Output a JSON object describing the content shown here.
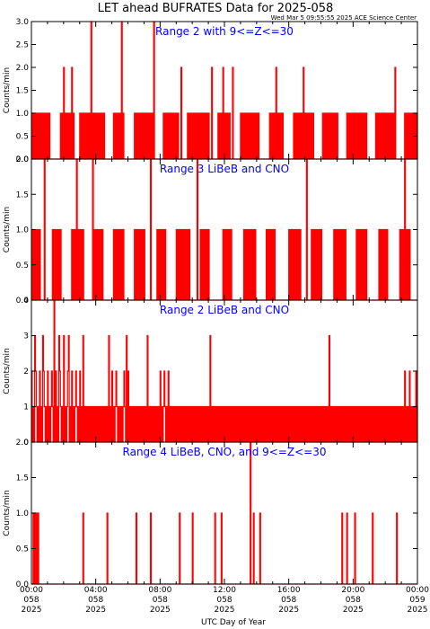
{
  "page": {
    "title": "LET ahead BUFRATES Data for 2025-058",
    "timestamp": "Wed Mar  5 09:55:55 2025 ACE Science Center",
    "xlabel": "UTC Day of Year"
  },
  "colors": {
    "data": "#ff0000",
    "panel_title": "#0000ff",
    "axes": "#000000"
  },
  "chart_data": [
    {
      "type": "line",
      "title": "Range 2 with 9<=Z<=30",
      "ylabel": "Counts/min",
      "ylim": [
        0,
        3
      ],
      "yticks": [
        "0.0",
        "0.5",
        "1.0",
        "1.5",
        "2.0",
        "2.5",
        "3.0"
      ],
      "xlim": [
        0,
        24
      ],
      "step_hours": 0.05,
      "one_count_intervals": [
        [
          0,
          1.2
        ],
        [
          1.8,
          2.6
        ],
        [
          3.0,
          4.5
        ],
        [
          5.1,
          5.8
        ],
        [
          6.4,
          7.6
        ],
        [
          8.2,
          9.1
        ],
        [
          9.7,
          11.0
        ],
        [
          11.6,
          12.3
        ],
        [
          13.0,
          14.2
        ],
        [
          14.8,
          15.7
        ],
        [
          16.3,
          17.5
        ],
        [
          18.1,
          19.0
        ],
        [
          19.6,
          20.8
        ],
        [
          21.4,
          22.6
        ],
        [
          23.2,
          24
        ]
      ],
      "peaks": [
        [
          2.0,
          2
        ],
        [
          2.5,
          2
        ],
        [
          3.7,
          3
        ],
        [
          5.6,
          3
        ],
        [
          7.6,
          3
        ],
        [
          9.3,
          2
        ],
        [
          11.2,
          2
        ],
        [
          11.9,
          2
        ],
        [
          12.5,
          2
        ],
        [
          15.2,
          2
        ],
        [
          16.9,
          2
        ],
        [
          22.6,
          2
        ]
      ]
    },
    {
      "type": "line",
      "title": "Range 3 LiBeB and CNO",
      "ylabel": "Counts/min",
      "ylim": [
        0,
        2
      ],
      "yticks": [
        "0.0",
        "0.5",
        "1.0",
        "1.5",
        "2.0"
      ],
      "xlim": [
        0,
        24
      ],
      "step_hours": 0.05,
      "one_count_intervals": [
        [
          0,
          0.6
        ],
        [
          1.3,
          1.9
        ],
        [
          2.5,
          3.2
        ],
        [
          3.9,
          4.4
        ],
        [
          5.1,
          5.7
        ],
        [
          6.4,
          7.1
        ],
        [
          7.8,
          8.3
        ],
        [
          9.0,
          9.8
        ],
        [
          10.5,
          11.1
        ],
        [
          11.9,
          12.4
        ],
        [
          13.2,
          13.9
        ],
        [
          14.6,
          15.2
        ],
        [
          16.0,
          16.7
        ],
        [
          17.4,
          18.0
        ],
        [
          18.8,
          19.5
        ],
        [
          20.2,
          20.9
        ],
        [
          21.6,
          22.2
        ],
        [
          22.9,
          23.5
        ]
      ],
      "peaks": [
        [
          0.8,
          2
        ],
        [
          2.8,
          2
        ],
        [
          3.8,
          2
        ],
        [
          7.4,
          2
        ],
        [
          10.3,
          2
        ],
        [
          17.1,
          2
        ],
        [
          23.2,
          2
        ]
      ]
    },
    {
      "type": "line",
      "title": "Range 2 LiBeB and CNO",
      "ylabel": "Counts/min",
      "ylim": [
        0,
        4
      ],
      "yticks": [
        "0",
        "1",
        "2",
        "3",
        "4"
      ],
      "xlim": [
        0,
        24
      ],
      "step_hours": 0.05,
      "one_count_intervals": [
        [
          0,
          24
        ]
      ],
      "two_count_intervals": [
        [
          0,
          3.2
        ],
        [
          4.9,
          5.3
        ],
        [
          5.6,
          6.1
        ],
        [
          7.8,
          8.5
        ]
      ],
      "peaks": [
        [
          0.2,
          3
        ],
        [
          0.7,
          3
        ],
        [
          1.4,
          4
        ],
        [
          1.7,
          3
        ],
        [
          2.0,
          3
        ],
        [
          2.3,
          3
        ],
        [
          3.2,
          3
        ],
        [
          4.8,
          3
        ],
        [
          5.9,
          3
        ],
        [
          7.2,
          3
        ],
        [
          11.1,
          3
        ],
        [
          18.5,
          3
        ],
        [
          23.2,
          2
        ],
        [
          23.5,
          2
        ],
        [
          23.9,
          2
        ]
      ]
    },
    {
      "type": "line",
      "title": "Range 4 LiBeB, CNO, and 9<=Z<=30",
      "ylabel": "Counts/min",
      "ylim": [
        0,
        2
      ],
      "yticks": [
        "0.0",
        "0.5",
        "1.0",
        "1.5",
        "2.0"
      ],
      "xlim": [
        0,
        24
      ],
      "step_hours": 0.05,
      "one_count_intervals": [
        [
          0.1,
          0.4
        ]
      ],
      "peaks": [
        [
          3.2,
          1
        ],
        [
          4.7,
          1
        ],
        [
          6.5,
          1
        ],
        [
          7.4,
          1
        ],
        [
          9.2,
          1
        ],
        [
          10.0,
          1
        ],
        [
          11.4,
          1
        ],
        [
          11.8,
          1
        ],
        [
          13.6,
          2
        ],
        [
          13.8,
          1
        ],
        [
          14.2,
          1
        ],
        [
          19.3,
          1
        ],
        [
          19.6,
          1
        ],
        [
          20.1,
          1
        ],
        [
          21.2,
          1
        ],
        [
          22.7,
          1
        ]
      ]
    }
  ],
  "xaxis": {
    "ticks": [
      {
        "time": "00:00",
        "doy": "058",
        "year": "2025"
      },
      {
        "time": "04:00",
        "doy": "058",
        "year": "2025"
      },
      {
        "time": "08:00",
        "doy": "058",
        "year": "2025"
      },
      {
        "time": "12:00",
        "doy": "058",
        "year": "2025"
      },
      {
        "time": "16:00",
        "doy": "058",
        "year": "2025"
      },
      {
        "time": "20:00",
        "doy": "058",
        "year": "2025"
      },
      {
        "time": "00:00",
        "doy": "059",
        "year": "2025"
      }
    ]
  }
}
